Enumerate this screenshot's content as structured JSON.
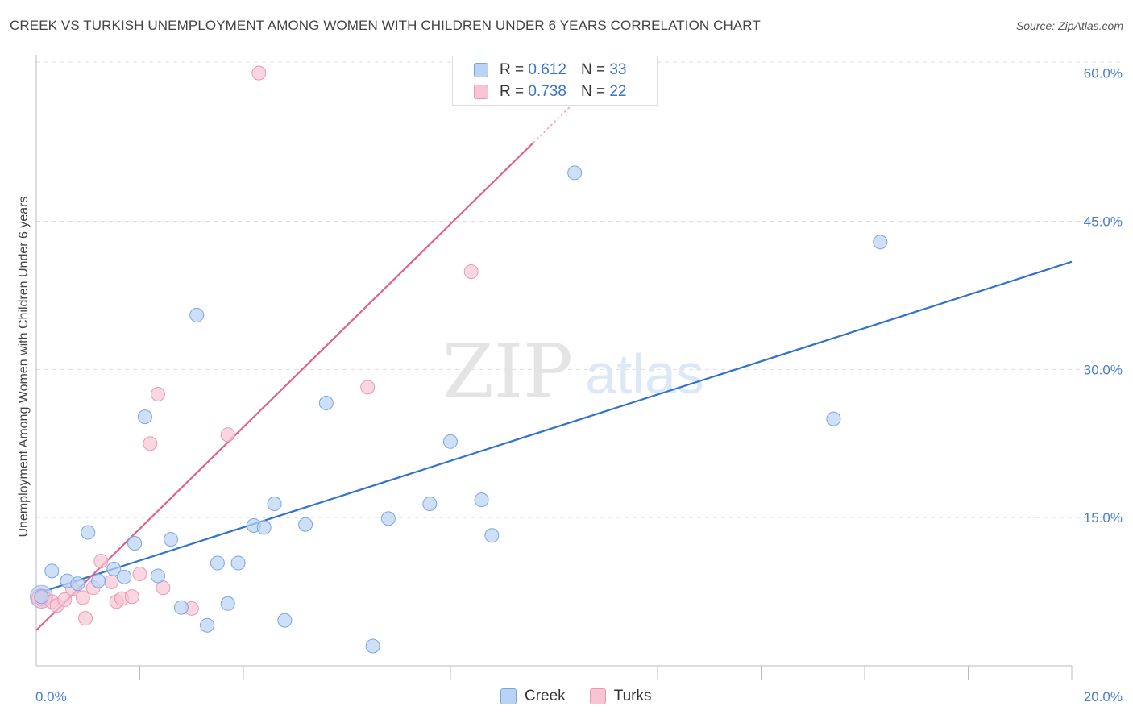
{
  "header": {
    "title": "CREEK VS TURKISH UNEMPLOYMENT AMONG WOMEN WITH CHILDREN UNDER 6 YEARS CORRELATION CHART",
    "source": "Source: ZipAtlas.com"
  },
  "watermark": {
    "zip": "ZIP",
    "atlas": "atlas"
  },
  "legend_top": {
    "r_label": "R =",
    "n_label": "N =",
    "rows": [
      {
        "r": "0.612",
        "n": "33"
      },
      {
        "r": "0.738",
        "n": "22"
      }
    ]
  },
  "legend_bottom": [
    "Creek",
    "Turks"
  ],
  "colors": {
    "creek_fill": "#b9d3f5",
    "creek_stroke": "#7aa6e0",
    "creek_line": "#2f72d0",
    "turks_fill": "#f8c4d4",
    "turks_stroke": "#e89ab3",
    "turks_line": "#e0628c",
    "axis_text": "#4a7fd0",
    "grid": "#dddddd"
  },
  "chart_data": {
    "type": "scatter",
    "title": "CREEK VS TURKISH UNEMPLOYMENT AMONG WOMEN WITH CHILDREN UNDER 6 YEARS CORRELATION CHART",
    "xlabel": "",
    "ylabel": "Unemployment Among Women with Children Under 6 years",
    "xlim": [
      0,
      20
    ],
    "ylim": [
      0,
      62.5
    ],
    "x_tick_labels": [
      "0.0%",
      "20.0%"
    ],
    "y_ticks": [
      15,
      30,
      45,
      60
    ],
    "y_tick_labels": [
      "15.0%",
      "30.0%",
      "45.0%",
      "60.0%"
    ],
    "grid": true,
    "legend_position": "top-center",
    "series": [
      {
        "name": "Creek",
        "r": 0.612,
        "n": 33,
        "points": [
          [
            0.1,
            7.0
          ],
          [
            0.3,
            9.6
          ],
          [
            0.6,
            8.6
          ],
          [
            0.8,
            8.3
          ],
          [
            1.0,
            13.5
          ],
          [
            1.2,
            8.6
          ],
          [
            1.5,
            9.8
          ],
          [
            1.7,
            9.0
          ],
          [
            1.9,
            12.4
          ],
          [
            2.1,
            25.2
          ],
          [
            2.35,
            9.1
          ],
          [
            2.6,
            12.8
          ],
          [
            2.8,
            5.9
          ],
          [
            3.1,
            35.5
          ],
          [
            3.3,
            4.1
          ],
          [
            3.5,
            10.4
          ],
          [
            3.7,
            6.3
          ],
          [
            3.9,
            10.4
          ],
          [
            4.2,
            14.2
          ],
          [
            4.4,
            14.0
          ],
          [
            4.6,
            16.4
          ],
          [
            4.8,
            4.6
          ],
          [
            5.2,
            14.3
          ],
          [
            5.6,
            26.6
          ],
          [
            6.5,
            2.0
          ],
          [
            6.8,
            14.9
          ],
          [
            7.6,
            16.4
          ],
          [
            8.0,
            22.7
          ],
          [
            8.6,
            16.8
          ],
          [
            8.8,
            13.2
          ],
          [
            10.4,
            49.9
          ],
          [
            15.4,
            25.0
          ],
          [
            16.3,
            42.9
          ]
        ],
        "trend": {
          "x": [
            0,
            20
          ],
          "y": [
            7.3,
            40.9
          ]
        }
      },
      {
        "name": "Turks",
        "r": 0.738,
        "n": 22,
        "points": [
          [
            0.1,
            6.8
          ],
          [
            0.3,
            6.5
          ],
          [
            0.4,
            6.1
          ],
          [
            0.55,
            6.7
          ],
          [
            0.7,
            7.8
          ],
          [
            0.9,
            6.9
          ],
          [
            0.95,
            4.8
          ],
          [
            1.1,
            7.9
          ],
          [
            1.25,
            10.6
          ],
          [
            1.45,
            8.5
          ],
          [
            1.55,
            6.5
          ],
          [
            1.65,
            6.8
          ],
          [
            1.85,
            7.0
          ],
          [
            2.0,
            9.3
          ],
          [
            2.2,
            22.5
          ],
          [
            2.35,
            27.5
          ],
          [
            2.45,
            7.9
          ],
          [
            3.0,
            5.8
          ],
          [
            3.7,
            23.4
          ],
          [
            4.3,
            60.0
          ],
          [
            6.4,
            28.2
          ],
          [
            8.4,
            39.9
          ]
        ],
        "trend": {
          "x": [
            0,
            10
          ],
          "y": [
            3.6,
            55.0
          ]
        }
      }
    ]
  }
}
